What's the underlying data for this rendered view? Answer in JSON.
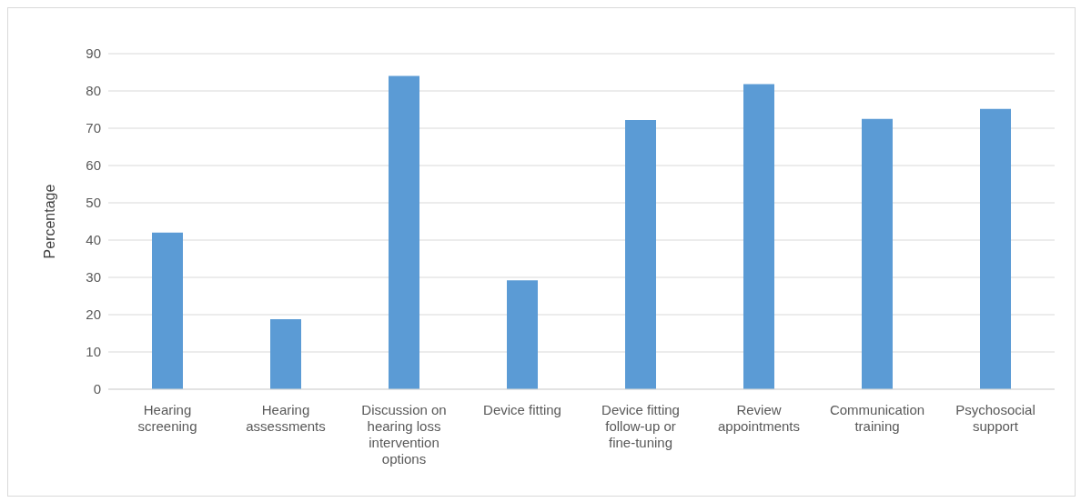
{
  "chart_data": {
    "type": "bar",
    "ylabel": "Percentage",
    "categories": [
      "Hearing screening",
      "Hearing assessments",
      "Discussion on hearing loss intervention options",
      "Device fitting",
      "Device fitting follow-up or fine-tuning",
      "Review appointments",
      "Communication training",
      "Psychosocial support"
    ],
    "values": [
      42,
      18.8,
      84,
      29.2,
      72.2,
      81.8,
      72.5,
      75.2
    ],
    "color": "#5b9bd5",
    "ylim": [
      0,
      90
    ],
    "yticks": [
      0,
      10,
      20,
      30,
      40,
      50,
      60,
      70,
      80,
      90
    ],
    "grid": "y",
    "legend": false
  }
}
